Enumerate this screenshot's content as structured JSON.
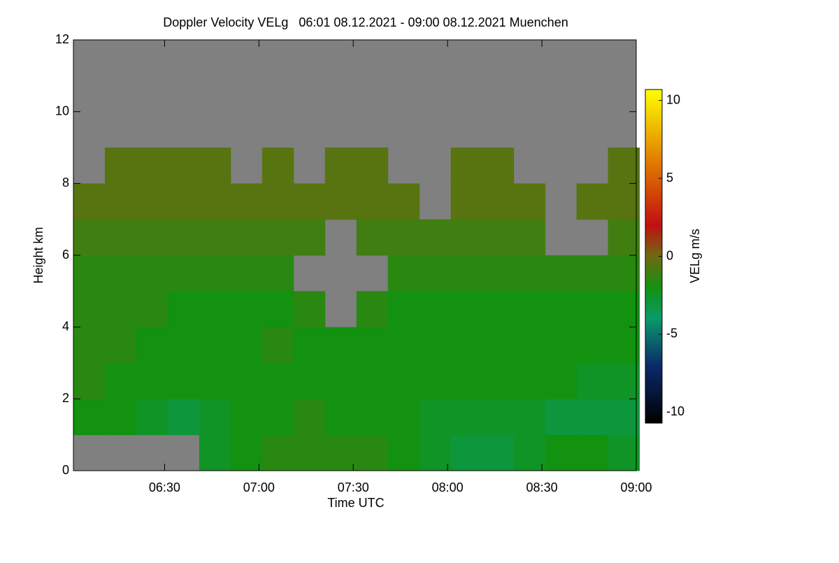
{
  "chart_data": {
    "type": "heatmap",
    "title": "Doppler Velocity VELg   06:01 08.12.2021 - 09:00 08.12.2021 Muenchen",
    "x_label": "Time UTC",
    "y_label": "Height km",
    "colorbar_label": "VELg m/s",
    "x": [
      366,
      376,
      386,
      396,
      406,
      416,
      426,
      436,
      446,
      456,
      466,
      476,
      486,
      496,
      506,
      516,
      526,
      536
    ],
    "y": [
      0.5,
      1.5,
      2.5,
      3.5,
      4.5,
      5.5,
      6.5,
      7.5,
      8.5,
      9.5,
      10.5,
      11.5
    ],
    "z": [
      [
        null,
        null,
        null,
        null,
        -2.5,
        -2,
        -1.5,
        -1.5,
        -1.5,
        -1.5,
        -2,
        -2.5,
        -3,
        -3,
        -2.5,
        -2,
        -2,
        -2.5
      ],
      [
        -2,
        -2,
        -2.5,
        -3,
        -2.5,
        -2,
        -2,
        -1.5,
        -2,
        -2,
        -2,
        -2.5,
        -2.5,
        -2.5,
        -2.5,
        -3,
        -3,
        -3
      ],
      [
        -1.5,
        -2,
        -2,
        -2,
        -2,
        -2,
        -2,
        -2,
        -2,
        -2,
        -2,
        -2,
        -2,
        -2,
        -2,
        -2,
        -2.5,
        -2.5
      ],
      [
        -1.5,
        -1.5,
        -2,
        -2,
        -2,
        -2,
        -1.5,
        -2,
        -2,
        -2,
        -2,
        -2,
        -2,
        -2,
        -2,
        -2,
        -2,
        -2
      ],
      [
        -1.5,
        -1.5,
        -1.5,
        -2,
        -2,
        -2,
        -2,
        -1.5,
        null,
        -1.5,
        -2,
        -2,
        -2,
        -2,
        -2,
        -2,
        -2,
        -2
      ],
      [
        -1.5,
        -1.5,
        -1.5,
        -1.5,
        -1.5,
        -1.5,
        -1.5,
        null,
        null,
        null,
        -1.5,
        -1.5,
        -1.5,
        -1.5,
        -1.5,
        -1.5,
        -1.5,
        -1.5
      ],
      [
        -1,
        -1,
        -1,
        -1,
        -1,
        -1,
        -1,
        -1,
        null,
        -1,
        -1,
        -1,
        -1,
        -1,
        -1,
        null,
        null,
        -1
      ],
      [
        -0.5,
        -0.5,
        -0.5,
        -0.5,
        -0.5,
        -0.5,
        -0.5,
        -0.5,
        -0.5,
        -0.5,
        -0.5,
        null,
        -0.5,
        -0.5,
        -0.5,
        null,
        -0.5,
        -0.5
      ],
      [
        null,
        -0.5,
        -0.5,
        -0.5,
        -0.5,
        null,
        -0.5,
        null,
        -0.5,
        -0.5,
        null,
        null,
        -0.5,
        -0.5,
        null,
        null,
        null,
        -0.5
      ],
      [
        null,
        null,
        null,
        null,
        null,
        null,
        null,
        null,
        null,
        null,
        null,
        null,
        null,
        null,
        null,
        null,
        null,
        null
      ],
      [
        null,
        null,
        null,
        null,
        null,
        null,
        null,
        null,
        null,
        null,
        null,
        null,
        null,
        null,
        null,
        null,
        null,
        null
      ],
      [
        null,
        null,
        null,
        null,
        null,
        null,
        null,
        null,
        null,
        null,
        null,
        null,
        null,
        null,
        null,
        null,
        null,
        null
      ]
    ],
    "xlim": [
      361,
      540
    ],
    "ylim": [
      0,
      12
    ],
    "xticks": [
      {
        "value": 390,
        "label": "06:30"
      },
      {
        "value": 420,
        "label": "07:00"
      },
      {
        "value": 450,
        "label": "07:30"
      },
      {
        "value": 480,
        "label": "08:00"
      },
      {
        "value": 510,
        "label": "08:30"
      },
      {
        "value": 540,
        "label": "09:00"
      }
    ],
    "yticks": [
      0,
      2,
      4,
      6,
      8,
      10,
      12
    ],
    "zlim": [
      -10.7,
      10.7
    ],
    "zticks": [
      -10,
      -5,
      0,
      5,
      10
    ],
    "colorscale": [
      [
        -10.7,
        "#000000"
      ],
      [
        -7,
        "#0a2a6a"
      ],
      [
        -4,
        "#0a9a6a"
      ],
      [
        -2,
        "#12920f"
      ],
      [
        0,
        "#6e6a12"
      ],
      [
        2,
        "#c01010"
      ],
      [
        6,
        "#e07a00"
      ],
      [
        10.7,
        "#ffff00"
      ]
    ],
    "nodata_color": "#808080"
  }
}
